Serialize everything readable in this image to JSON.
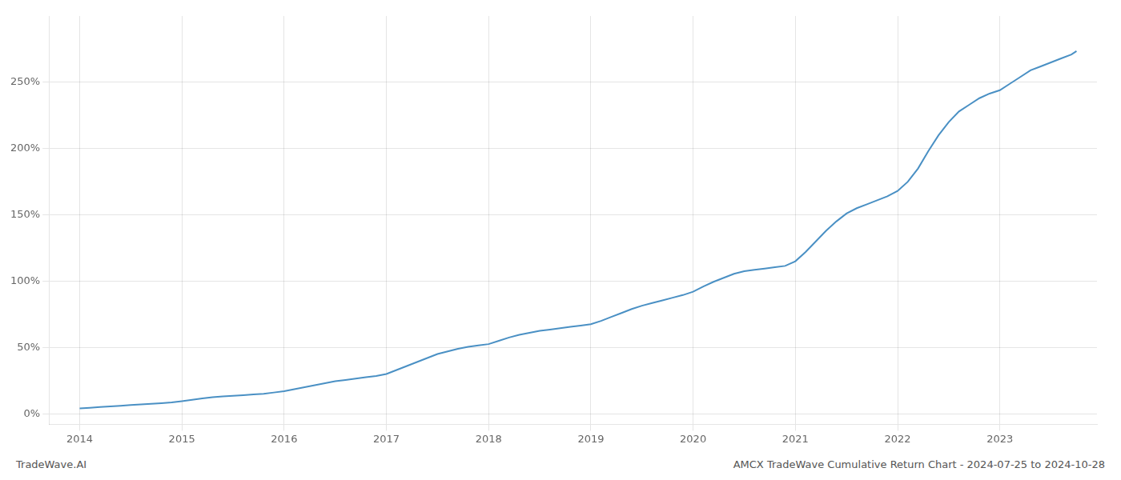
{
  "chart_data": {
    "type": "line",
    "annotations": [
      "TradeWave.AI",
      "AMCX TradeWave Cumulative Return Chart - 2024-07-25 to 2024-10-28"
    ],
    "x": [
      2014.0,
      2014.1,
      2014.2,
      2014.3,
      2014.4,
      2014.5,
      2014.6,
      2014.7,
      2014.8,
      2014.9,
      2015.0,
      2015.1,
      2015.2,
      2015.3,
      2015.4,
      2015.5,
      2015.6,
      2015.7,
      2015.8,
      2015.9,
      2016.0,
      2016.1,
      2016.2,
      2016.3,
      2016.4,
      2016.5,
      2016.6,
      2016.7,
      2016.8,
      2016.9,
      2017.0,
      2017.1,
      2017.2,
      2017.3,
      2017.4,
      2017.5,
      2017.6,
      2017.7,
      2017.8,
      2017.9,
      2018.0,
      2018.1,
      2018.2,
      2018.3,
      2018.4,
      2018.5,
      2018.6,
      2018.7,
      2018.8,
      2018.9,
      2019.0,
      2019.1,
      2019.2,
      2019.3,
      2019.4,
      2019.5,
      2019.6,
      2019.7,
      2019.8,
      2019.9,
      2020.0,
      2020.1,
      2020.2,
      2020.3,
      2020.4,
      2020.5,
      2020.6,
      2020.7,
      2020.8,
      2020.9,
      2021.0,
      2021.1,
      2021.2,
      2021.3,
      2021.4,
      2021.5,
      2021.6,
      2021.7,
      2021.8,
      2021.9,
      2022.0,
      2022.1,
      2022.2,
      2022.3,
      2022.4,
      2022.5,
      2022.6,
      2022.7,
      2022.8,
      2022.9,
      2023.0,
      2023.1,
      2023.2,
      2023.3,
      2023.4,
      2023.5,
      2023.6,
      2023.7,
      2023.75
    ],
    "values": [
      4.0,
      4.5,
      5.0,
      5.5,
      6.0,
      6.5,
      7.0,
      7.5,
      8.0,
      8.5,
      9.5,
      10.5,
      11.5,
      12.5,
      13.0,
      13.5,
      14.0,
      14.5,
      15.0,
      16.0,
      17.0,
      18.5,
      20.0,
      21.5,
      23.0,
      24.5,
      25.5,
      26.5,
      27.5,
      28.5,
      30.0,
      33.0,
      36.0,
      39.0,
      42.0,
      45.0,
      47.0,
      49.0,
      50.5,
      51.5,
      52.5,
      55.0,
      57.5,
      59.5,
      61.0,
      62.5,
      63.5,
      64.5,
      65.5,
      66.5,
      67.5,
      70.0,
      73.0,
      76.0,
      79.0,
      81.5,
      83.5,
      85.5,
      87.5,
      89.5,
      92.0,
      96.0,
      99.5,
      102.5,
      105.5,
      107.5,
      108.5,
      109.5,
      110.5,
      111.5,
      115.0,
      122.0,
      130.0,
      138.0,
      145.0,
      151.0,
      155.0,
      158.0,
      161.0,
      164.0,
      168.0,
      175.0,
      185.0,
      198.0,
      210.0,
      220.0,
      228.0,
      233.0,
      238.0,
      241.5,
      244.0,
      249.0,
      254.0,
      259.0,
      262.0,
      265.0,
      268.0,
      271.0,
      273.5
    ],
    "color": "#4a90c4",
    "xlim": [
      2013.7,
      2023.95
    ],
    "xticks": [
      2014,
      2015,
      2016,
      2017,
      2018,
      2019,
      2020,
      2021,
      2022,
      2023
    ],
    "ylim": [
      -8,
      300
    ],
    "yticks": [
      {
        "value": 0,
        "label": "0%"
      },
      {
        "value": 50,
        "label": "50%"
      },
      {
        "value": 100,
        "label": "100%"
      },
      {
        "value": 150,
        "label": "150%"
      },
      {
        "value": 200,
        "label": "200%"
      },
      {
        "value": 250,
        "label": "250%"
      }
    ],
    "grid": true
  }
}
